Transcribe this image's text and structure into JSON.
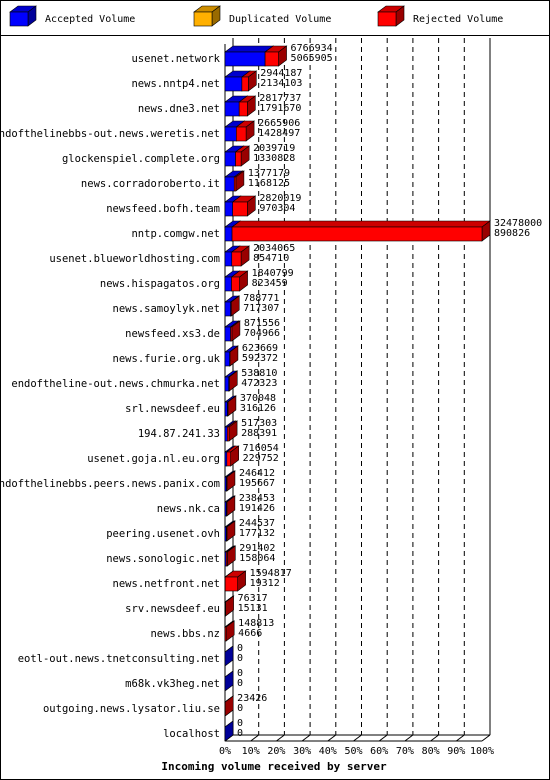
{
  "chart_data": {
    "type": "bar3d",
    "orientation": "horizontal",
    "stacked": true,
    "x_label": "Incoming volume received by server",
    "categories": [
      "usenet.network",
      "news.nntp4.net",
      "news.dne3.net",
      "endofthelinebbs-out.news.weretis.net",
      "glockenspiel.complete.org",
      "news.corradoroberto.it",
      "newsfeed.bofh.team",
      "nntp.comgw.net",
      "usenet.blueworldhosting.com",
      "news.hispagatos.org",
      "news.samoylyk.net",
      "newsfeed.xs3.de",
      "news.furie.org.uk",
      "endoftheline-out.news.chmurka.net",
      "srl.newsdeef.eu",
      "194.87.241.33",
      "usenet.goja.nl.eu.org",
      "endofthelinebbs.peers.news.panix.com",
      "news.nk.ca",
      "peering.usenet.ovh",
      "news.sonologic.net",
      "news.netfront.net",
      "srv.newsdeef.eu",
      "news.bbs.nz",
      "eotl-out.news.tnetconsulting.net",
      "m68k.vk3heg.net",
      "outgoing.news.lysator.liu.se",
      "localhost"
    ],
    "totals": [
      6766934,
      2944187,
      2817737,
      2665906,
      2039719,
      1377179,
      2820019,
      32478000,
      2034065,
      1840799,
      788771,
      871556,
      623669,
      538810,
      370048,
      517303,
      716054,
      246412,
      238453,
      244537,
      291402,
      1594817,
      76317,
      148813,
      0,
      0,
      23426,
      0
    ],
    "series": [
      {
        "name": "Accepted Volume",
        "color": "#0000ff",
        "values": [
          5065905,
          2134103,
          1791670,
          1428497,
          1330828,
          1168125,
          970304,
          890826,
          854710,
          823459,
          717307,
          704966,
          592372,
          472323,
          316126,
          288391,
          229752,
          195667,
          191426,
          177132,
          158064,
          19312,
          15131,
          4666,
          0,
          0,
          0,
          0
        ]
      },
      {
        "name": "Duplicated Volume",
        "color": "#ffb000",
        "values": [
          0,
          0,
          0,
          0,
          0,
          0,
          0,
          0,
          0,
          0,
          0,
          0,
          0,
          0,
          0,
          0,
          0,
          0,
          0,
          0,
          0,
          0,
          0,
          0,
          0,
          0,
          0,
          0
        ]
      },
      {
        "name": "Rejected Volume",
        "color": "#ff0000",
        "values": [
          1701029,
          810084,
          1026067,
          1237409,
          708891,
          209054,
          1849715,
          31587174,
          1179355,
          1017340,
          71464,
          166590,
          31297,
          66487,
          53922,
          228912,
          486302,
          50745,
          47027,
          67405,
          133338,
          1575505,
          61186,
          144147,
          0,
          0,
          23426,
          0
        ]
      }
    ],
    "xlim": [
      0,
      32478000
    ],
    "xticks": [
      {
        "value": 0,
        "label": "0%"
      },
      {
        "value": 3247800,
        "label": "10%"
      },
      {
        "value": 6495600,
        "label": "20%"
      },
      {
        "value": 9743400,
        "label": "30%"
      },
      {
        "value": 12991200,
        "label": "40%"
      },
      {
        "value": 16239000,
        "label": "50%"
      },
      {
        "value": 19486800,
        "label": "60%"
      },
      {
        "value": 22734600,
        "label": "70%"
      },
      {
        "value": 25982400,
        "label": "80%"
      },
      {
        "value": 29230200,
        "label": "90%"
      },
      {
        "value": 32478000,
        "label": "100%"
      }
    ],
    "grid": true
  }
}
